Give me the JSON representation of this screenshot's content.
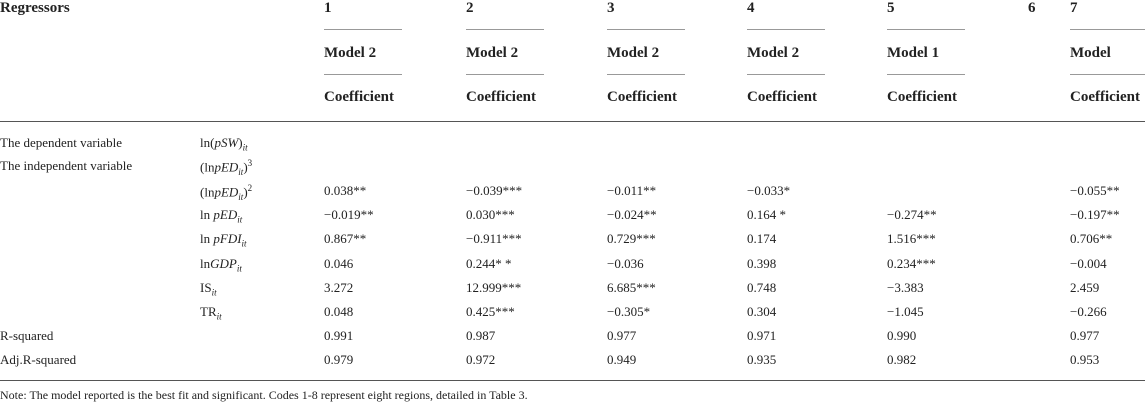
{
  "header": {
    "regressors": "Regressors",
    "columns": [
      {
        "num": "1",
        "model": "Model 2",
        "stat": "Coefficient"
      },
      {
        "num": "2",
        "model": "Model 2",
        "stat": "Coefficient"
      },
      {
        "num": "3",
        "model": "Model 2",
        "stat": "Coefficient"
      },
      {
        "num": "4",
        "model": "Model 2",
        "stat": "Coefficient"
      },
      {
        "num": "5",
        "model": "Model 1",
        "stat": "Coefficient"
      },
      {
        "num": "6",
        "model": null,
        "stat": null
      },
      {
        "num": "7",
        "model": "Model",
        "stat": "Coefficient"
      }
    ]
  },
  "rows": [
    {
      "label": "The dependent variable",
      "term": [
        {
          "t": "ln("
        },
        {
          "t": "pSW",
          "i": true
        },
        {
          "t": ")"
        },
        {
          "t": "it",
          "sub": true,
          "i": true
        }
      ]
    },
    {
      "label": "The independent variable",
      "term": [
        {
          "t": "(ln"
        },
        {
          "t": "pED",
          "i": true
        },
        {
          "t": "it",
          "sub": true,
          "i": true
        },
        {
          "t": ")"
        },
        {
          "t": "3",
          "sup": true
        }
      ]
    },
    {
      "label": null,
      "term": [
        {
          "t": "(ln"
        },
        {
          "t": "pED",
          "i": true
        },
        {
          "t": "it",
          "sub": true,
          "i": true
        },
        {
          "t": ")"
        },
        {
          "t": "2",
          "sup": true
        }
      ],
      "cells": [
        "0.038**",
        "−0.039***",
        "−0.011**",
        "−0.033*",
        null,
        null,
        "−0.055**"
      ]
    },
    {
      "label": null,
      "term": [
        {
          "t": "ln "
        },
        {
          "t": "pED",
          "i": true
        },
        {
          "t": "it",
          "sub": true,
          "i": true
        }
      ],
      "cells": [
        "−0.019**",
        "0.030***",
        "−0.024**",
        "0.164 *",
        "−0.274**",
        null,
        "−0.197**"
      ]
    },
    {
      "label": null,
      "term": [
        {
          "t": "ln "
        },
        {
          "t": "pFDI",
          "i": true
        },
        {
          "t": "it",
          "sub": true,
          "i": true
        }
      ],
      "cells": [
        "0.867**",
        "−0.911***",
        "0.729***",
        "0.174",
        "1.516***",
        null,
        "0.706**"
      ]
    },
    {
      "label": null,
      "term": [
        {
          "t": "ln"
        },
        {
          "t": "GDP",
          "i": true
        },
        {
          "t": "it",
          "sub": true,
          "i": true
        }
      ],
      "cells": [
        "0.046",
        "0.244* *",
        "−0.036",
        "0.398",
        "0.234***",
        null,
        "−0.004"
      ]
    },
    {
      "label": null,
      "term": [
        {
          "t": "IS"
        },
        {
          "t": "it",
          "sub": true,
          "i": true
        }
      ],
      "cells": [
        "3.272",
        "12.999***",
        "6.685***",
        "0.748",
        "−3.383",
        null,
        "2.459"
      ]
    },
    {
      "label": null,
      "term": [
        {
          "t": "TR"
        },
        {
          "t": "it",
          "sub": true,
          "i": true
        }
      ],
      "cells": [
        "0.048",
        "0.425***",
        "−0.305*",
        "0.304",
        "−1.045",
        null,
        "−0.266"
      ]
    },
    {
      "label": "R-squared",
      "term": null,
      "cells": [
        "0.991",
        "0.987",
        "0.977",
        "0.971",
        "0.990",
        null,
        "0.977"
      ]
    },
    {
      "label": "Adj.R-squared",
      "term": null,
      "cells": [
        "0.979",
        "0.972",
        "0.949",
        "0.935",
        "0.982",
        null,
        "0.953"
      ]
    }
  ],
  "note": "Note: The model reported is the best fit and significant. Codes 1-8 represent eight regions, detailed in Table 3."
}
